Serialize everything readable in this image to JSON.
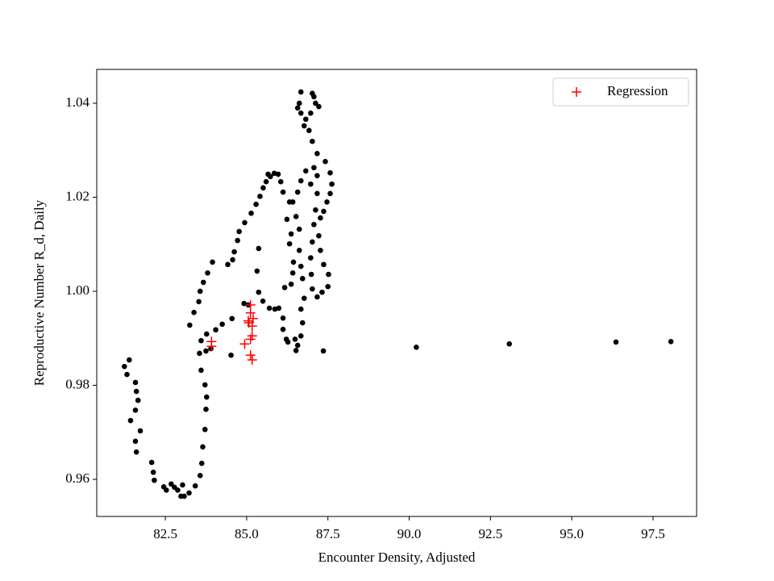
{
  "chart_data": {
    "type": "scatter",
    "xlabel": "Encounter Density, Adjusted",
    "ylabel": "Reproductive Number R_d, Daily",
    "xlim": [
      80.39,
      98.84
    ],
    "ylim": [
      0.9521,
      1.0472
    ],
    "xticks": [
      82.5,
      {
        "value": 85,
        "label": "85.0"
      },
      87.5,
      {
        "value": 90,
        "label": "90.0"
      },
      92.5,
      {
        "value": 95,
        "label": "95.0"
      },
      97.5
    ],
    "yticks": [
      0.96,
      0.98,
      {
        "value": 1,
        "label": "1.00"
      },
      1.02,
      1.04
    ],
    "legend": "upper right",
    "series": [
      {
        "color": "#000000",
        "marker": "o",
        "x": [
          81.24,
          81.39,
          81.32,
          81.58,
          81.61,
          81.66,
          81.58,
          81.43,
          81.73,
          81.58,
          81.61,
          82.08,
          82.13,
          82.16,
          82.45,
          82.53,
          82.68,
          82.78,
          82.88,
          82.98,
          83.08,
          83.03,
          83.23,
          83.42,
          83.57,
          83.62,
          83.65,
          83.72,
          83.75,
          83.77,
          83.72,
          83.6,
          83.55,
          83.6,
          83.77,
          83.9,
          83.75,
          83.25,
          83.38,
          83.53,
          83.57,
          83.67,
          83.8,
          83.95,
          84.42,
          84.57,
          84.62,
          84.72,
          84.77,
          84.94,
          85.14,
          85.29,
          85.41,
          85.51,
          85.6,
          85.73,
          85.66,
          85.85,
          85.97,
          86.05,
          86.12,
          84.05,
          84.25,
          84.55,
          84.52,
          84.92,
          85.05,
          85.32,
          85.37,
          85.37,
          85.5,
          85.7,
          85.87,
          85.99,
          86.17,
          86.12,
          86.12,
          86.22,
          86.27,
          86.24,
          86.32,
          86.37,
          86.32,
          86.44,
          86.42,
          86.37,
          86.49,
          86.52,
          86.57,
          86.67,
          86.72,
          86.67,
          86.77,
          86.72,
          86.67,
          86.62,
          86.62,
          86.52,
          86.42,
          86.57,
          86.67,
          86.82,
          86.97,
          87.07,
          87.17,
          87.17,
          87.12,
          87.07,
          87.02,
          86.97,
          86.99,
          87.02,
          87.17,
          87.32,
          87.5,
          87.52,
          87.37,
          87.27,
          87.22,
          87.27,
          87.37,
          87.47,
          87.57,
          87.62,
          87.57,
          87.42,
          87.17,
          87.02,
          86.92,
          86.77,
          86.67,
          86.67,
          86.62,
          86.82,
          86.97,
          87.07,
          87.12,
          87.22,
          87.02,
          86.57,
          87.36,
          90.22,
          93.08,
          96.36,
          98.05
        ],
        "values": [
          0.984,
          0.9854,
          0.9823,
          0.9806,
          0.9787,
          0.9768,
          0.9747,
          0.9725,
          0.9703,
          0.9681,
          0.9658,
          0.9636,
          0.9615,
          0.9598,
          0.9584,
          0.9577,
          0.959,
          0.9583,
          0.9577,
          0.9564,
          0.9564,
          0.9588,
          0.9571,
          0.9586,
          0.9608,
          0.9634,
          0.9669,
          0.9706,
          0.9749,
          0.9775,
          0.9801,
          0.9832,
          0.9868,
          0.9895,
          0.9909,
          0.9878,
          0.9873,
          0.9928,
          0.9955,
          0.9978,
          1.0,
          1.0019,
          1.0039,
          1.0062,
          1.0057,
          1.0067,
          1.0084,
          1.0108,
          1.0127,
          1.0146,
          1.0166,
          1.0185,
          1.0202,
          1.022,
          1.0233,
          1.0244,
          1.0249,
          1.0251,
          1.0249,
          1.0233,
          1.0211,
          0.9918,
          0.993,
          0.9942,
          0.9864,
          0.9974,
          0.9971,
          1.0043,
          1.0091,
          0.9998,
          0.9979,
          0.9964,
          0.9962,
          0.9964,
          1.0008,
          0.9943,
          0.9919,
          0.9898,
          0.9892,
          1.0153,
          1.019,
          1.0122,
          1.0101,
          1.0062,
          1.0039,
          1.0015,
          0.9898,
          0.9874,
          0.9885,
          0.9905,
          0.9933,
          0.9962,
          0.9985,
          1.0027,
          1.0053,
          1.0087,
          1.0132,
          1.0159,
          1.019,
          1.0211,
          1.0235,
          1.0256,
          1.0228,
          1.0263,
          1.0246,
          1.0208,
          1.0173,
          1.0142,
          1.0105,
          1.0071,
          1.0036,
          1.0005,
          0.9988,
          0.9998,
          1.001,
          1.0036,
          1.0057,
          1.0087,
          1.0118,
          1.0156,
          1.017,
          1.019,
          1.0208,
          1.0228,
          1.0252,
          1.0276,
          1.0293,
          1.0319,
          1.0342,
          1.0352,
          1.0379,
          1.0424,
          1.04,
          1.0366,
          1.0379,
          1.0414,
          1.04,
          1.0393,
          1.0421,
          1.039,
          0.9873,
          0.9881,
          0.9888,
          0.9892,
          0.9893
        ]
      },
      {
        "name": "Regression",
        "color": "#ff0000",
        "marker": "+",
        "x": [
          83.92,
          83.92,
          84.94,
          85.07,
          85.12,
          85.12,
          85.17,
          85.17,
          85.12,
          85.12,
          85.17,
          85.05,
          85.2
        ],
        "values": [
          0.9883,
          0.9893,
          0.9888,
          0.9933,
          0.9971,
          0.9954,
          0.9926,
          0.9905,
          0.9898,
          0.9864,
          0.9854,
          0.9937,
          0.9942
        ]
      }
    ]
  }
}
